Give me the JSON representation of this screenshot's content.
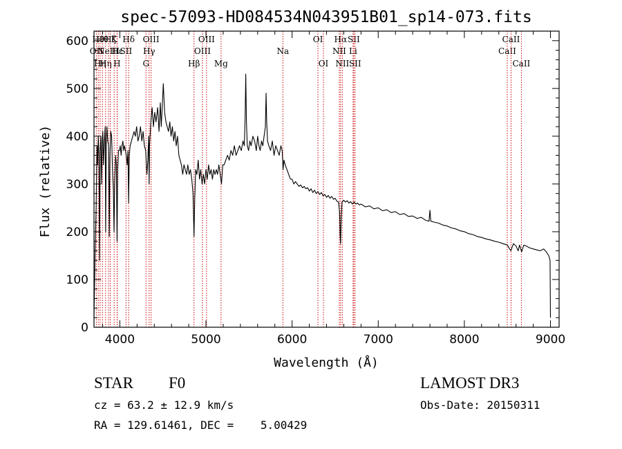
{
  "chart_data": {
    "type": "line",
    "title": "spec-57093-HD084534N043951B01_sp14-073.fits",
    "xlabel": "Wavelength (Å)",
    "ylabel": "Flux (relative)",
    "xlim": [
      3700,
      9100
    ],
    "ylim": [
      0,
      620
    ],
    "xticks": [
      4000,
      5000,
      6000,
      7000,
      8000,
      9000
    ],
    "yticks": [
      0,
      100,
      200,
      300,
      400,
      500,
      600
    ],
    "line_color": "#000000",
    "marker_color": "#cc0000",
    "series": [
      {
        "name": "flux",
        "points": [
          [
            3700,
            20
          ],
          [
            3712,
            150
          ],
          [
            3725,
            250
          ],
          [
            3735,
            380
          ],
          [
            3742,
            340
          ],
          [
            3750,
            400
          ],
          [
            3758,
            360
          ],
          [
            3765,
            140
          ],
          [
            3772,
            370
          ],
          [
            3780,
            400
          ],
          [
            3788,
            300
          ],
          [
            3796,
            390
          ],
          [
            3803,
            410
          ],
          [
            3810,
            340
          ],
          [
            3820,
            390
          ],
          [
            3830,
            420
          ],
          [
            3836,
            200
          ],
          [
            3842,
            380
          ],
          [
            3850,
            420
          ],
          [
            3860,
            390
          ],
          [
            3870,
            380
          ],
          [
            3877,
            190
          ],
          [
            3885,
            360
          ],
          [
            3895,
            410
          ],
          [
            3905,
            400
          ],
          [
            3915,
            330
          ],
          [
            3925,
            290
          ],
          [
            3933,
            200
          ],
          [
            3940,
            300
          ],
          [
            3950,
            360
          ],
          [
            3960,
            340
          ],
          [
            3968,
            180
          ],
          [
            3975,
            330
          ],
          [
            3985,
            370
          ],
          [
            3995,
            370
          ],
          [
            4005,
            380
          ],
          [
            4015,
            360
          ],
          [
            4025,
            380
          ],
          [
            4035,
            390
          ],
          [
            4045,
            370
          ],
          [
            4055,
            380
          ],
          [
            4065,
            370
          ],
          [
            4075,
            360
          ],
          [
            4085,
            340
          ],
          [
            4095,
            370
          ],
          [
            4102,
            260
          ],
          [
            4110,
            360
          ],
          [
            4120,
            380
          ],
          [
            4135,
            390
          ],
          [
            4150,
            400
          ],
          [
            4165,
            410
          ],
          [
            4180,
            400
          ],
          [
            4195,
            420
          ],
          [
            4210,
            390
          ],
          [
            4225,
            400
          ],
          [
            4240,
            420
          ],
          [
            4255,
            390
          ],
          [
            4270,
            410
          ],
          [
            4285,
            380
          ],
          [
            4300,
            370
          ],
          [
            4315,
            320
          ],
          [
            4325,
            350
          ],
          [
            4335,
            400
          ],
          [
            4340,
            300
          ],
          [
            4345,
            380
          ],
          [
            4360,
            430
          ],
          [
            4375,
            460
          ],
          [
            4390,
            420
          ],
          [
            4405,
            450
          ],
          [
            4420,
            430
          ],
          [
            4440,
            460
          ],
          [
            4455,
            410
          ],
          [
            4470,
            470
          ],
          [
            4481,
            420
          ],
          [
            4492,
            460
          ],
          [
            4505,
            510
          ],
          [
            4520,
            450
          ],
          [
            4535,
            430
          ],
          [
            4550,
            420
          ],
          [
            4565,
            410
          ],
          [
            4580,
            430
          ],
          [
            4595,
            400
          ],
          [
            4610,
            420
          ],
          [
            4625,
            390
          ],
          [
            4640,
            410
          ],
          [
            4655,
            380
          ],
          [
            4670,
            400
          ],
          [
            4685,
            360
          ],
          [
            4700,
            350
          ],
          [
            4715,
            340
          ],
          [
            4730,
            320
          ],
          [
            4745,
            340
          ],
          [
            4760,
            330
          ],
          [
            4775,
            320
          ],
          [
            4790,
            340
          ],
          [
            4805,
            320
          ],
          [
            4820,
            330
          ],
          [
            4835,
            310
          ],
          [
            4850,
            280
          ],
          [
            4861,
            190
          ],
          [
            4870,
            270
          ],
          [
            4880,
            330
          ],
          [
            4895,
            320
          ],
          [
            4910,
            350
          ],
          [
            4925,
            310
          ],
          [
            4940,
            330
          ],
          [
            4955,
            300
          ],
          [
            4970,
            320
          ],
          [
            4985,
            300
          ],
          [
            5000,
            330
          ],
          [
            5015,
            310
          ],
          [
            5030,
            340
          ],
          [
            5045,
            320
          ],
          [
            5060,
            330
          ],
          [
            5075,
            310
          ],
          [
            5090,
            330
          ],
          [
            5105,
            320
          ],
          [
            5120,
            330
          ],
          [
            5135,
            320
          ],
          [
            5150,
            340
          ],
          [
            5165,
            320
          ],
          [
            5180,
            300
          ],
          [
            5195,
            340
          ],
          [
            5210,
            340
          ],
          [
            5230,
            350
          ],
          [
            5250,
            360
          ],
          [
            5270,
            350
          ],
          [
            5290,
            370
          ],
          [
            5310,
            360
          ],
          [
            5330,
            380
          ],
          [
            5350,
            360
          ],
          [
            5370,
            370
          ],
          [
            5390,
            380
          ],
          [
            5410,
            370
          ],
          [
            5430,
            390
          ],
          [
            5445,
            380
          ],
          [
            5455,
            440
          ],
          [
            5462,
            530
          ],
          [
            5470,
            430
          ],
          [
            5480,
            380
          ],
          [
            5495,
            370
          ],
          [
            5510,
            390
          ],
          [
            5525,
            380
          ],
          [
            5545,
            400
          ],
          [
            5565,
            390
          ],
          [
            5585,
            370
          ],
          [
            5600,
            400
          ],
          [
            5615,
            380
          ],
          [
            5630,
            370
          ],
          [
            5645,
            390
          ],
          [
            5660,
            380
          ],
          [
            5675,
            400
          ],
          [
            5690,
            420
          ],
          [
            5698,
            490
          ],
          [
            5705,
            430
          ],
          [
            5715,
            390
          ],
          [
            5730,
            380
          ],
          [
            5750,
            370
          ],
          [
            5770,
            390
          ],
          [
            5790,
            360
          ],
          [
            5810,
            380
          ],
          [
            5830,
            370
          ],
          [
            5850,
            360
          ],
          [
            5870,
            380
          ],
          [
            5885,
            370
          ],
          [
            5895,
            330
          ],
          [
            5905,
            350
          ],
          [
            5920,
            340
          ],
          [
            5940,
            330
          ],
          [
            5960,
            320
          ],
          [
            5980,
            310
          ],
          [
            6000,
            310
          ],
          [
            6020,
            300
          ],
          [
            6040,
            305
          ],
          [
            6060,
            300
          ],
          [
            6080,
            295
          ],
          [
            6100,
            298
          ],
          [
            6120,
            292
          ],
          [
            6140,
            295
          ],
          [
            6160,
            290
          ],
          [
            6180,
            292
          ],
          [
            6200,
            285
          ],
          [
            6220,
            290
          ],
          [
            6240,
            282
          ],
          [
            6260,
            287
          ],
          [
            6280,
            280
          ],
          [
            6300,
            284
          ],
          [
            6320,
            278
          ],
          [
            6340,
            282
          ],
          [
            6360,
            275
          ],
          [
            6380,
            278
          ],
          [
            6400,
            272
          ],
          [
            6420,
            276
          ],
          [
            6440,
            270
          ],
          [
            6460,
            274
          ],
          [
            6480,
            268
          ],
          [
            6500,
            270
          ],
          [
            6520,
            264
          ],
          [
            6540,
            262
          ],
          [
            6552,
            240
          ],
          [
            6558,
            190
          ],
          [
            6563,
            175
          ],
          [
            6570,
            230
          ],
          [
            6580,
            262
          ],
          [
            6600,
            266
          ],
          [
            6620,
            262
          ],
          [
            6640,
            265
          ],
          [
            6660,
            260
          ],
          [
            6680,
            263
          ],
          [
            6700,
            258
          ],
          [
            6720,
            262
          ],
          [
            6740,
            258
          ],
          [
            6760,
            260
          ],
          [
            6780,
            256
          ],
          [
            6800,
            258
          ],
          [
            6850,
            252
          ],
          [
            6900,
            254
          ],
          [
            6950,
            248
          ],
          [
            7000,
            250
          ],
          [
            7050,
            244
          ],
          [
            7100,
            246
          ],
          [
            7150,
            240
          ],
          [
            7200,
            242
          ],
          [
            7250,
            236
          ],
          [
            7300,
            238
          ],
          [
            7350,
            232
          ],
          [
            7400,
            233
          ],
          [
            7450,
            228
          ],
          [
            7500,
            230
          ],
          [
            7550,
            224
          ],
          [
            7590,
            222
          ],
          [
            7600,
            245
          ],
          [
            7610,
            222
          ],
          [
            7650,
            220
          ],
          [
            7700,
            218
          ],
          [
            7750,
            214
          ],
          [
            7800,
            212
          ],
          [
            7850,
            208
          ],
          [
            7900,
            206
          ],
          [
            7950,
            202
          ],
          [
            8000,
            200
          ],
          [
            8050,
            196
          ],
          [
            8100,
            194
          ],
          [
            8150,
            190
          ],
          [
            8200,
            188
          ],
          [
            8250,
            185
          ],
          [
            8300,
            183
          ],
          [
            8350,
            180
          ],
          [
            8400,
            178
          ],
          [
            8450,
            175
          ],
          [
            8500,
            172
          ],
          [
            8540,
            160
          ],
          [
            8570,
            175
          ],
          [
            8600,
            170
          ],
          [
            8625,
            160
          ],
          [
            8640,
            172
          ],
          [
            8665,
            158
          ],
          [
            8690,
            172
          ],
          [
            8720,
            170
          ],
          [
            8760,
            166
          ],
          [
            8800,
            164
          ],
          [
            8840,
            162
          ],
          [
            8880,
            160
          ],
          [
            8920,
            164
          ],
          [
            8950,
            158
          ],
          [
            8980,
            150
          ],
          [
            8995,
            140
          ],
          [
            9000,
            20
          ]
        ]
      }
    ],
    "lines": [
      {
        "wavelength": 3727,
        "label": "OII",
        "row": 1
      },
      {
        "wavelength": 3750,
        "label": "Hθ",
        "row": 0
      },
      {
        "wavelength": 3771,
        "label": "Hη",
        "row": 2
      },
      {
        "wavelength": 3798,
        "label": "Hθ",
        "row": 0
      },
      {
        "wavelength": 3835,
        "label": "Hη",
        "row": 2
      },
      {
        "wavelength": 3869,
        "label": "NeIII",
        "row": 1
      },
      {
        "wavelength": 3889,
        "label": "Hζ",
        "row": 0
      },
      {
        "wavelength": 3934,
        "label": "K",
        "row": 0
      },
      {
        "wavelength": 3968,
        "label": "H",
        "row": 2
      },
      {
        "wavelength": 3970,
        "label": "Hε",
        "row": 1
      },
      {
        "wavelength": 4072,
        "label": "SII",
        "row": 1
      },
      {
        "wavelength": 4102,
        "label": "Hδ",
        "row": 0
      },
      {
        "wavelength": 4304,
        "label": "G",
        "row": 2
      },
      {
        "wavelength": 4340,
        "label": "Hγ",
        "row": 1
      },
      {
        "wavelength": 4363,
        "label": "OIII",
        "row": 0
      },
      {
        "wavelength": 4861,
        "label": "Hβ",
        "row": 2
      },
      {
        "wavelength": 4959,
        "label": "OIII",
        "row": 1
      },
      {
        "wavelength": 5007,
        "label": "OIII",
        "row": 0
      },
      {
        "wavelength": 5175,
        "label": "Mg",
        "row": 2
      },
      {
        "wavelength": 5893,
        "label": "Na",
        "row": 1
      },
      {
        "wavelength": 6300,
        "label": "OI",
        "row": 0
      },
      {
        "wavelength": 6364,
        "label": "OI",
        "row": 2
      },
      {
        "wavelength": 6548,
        "label": "NII",
        "row": 1
      },
      {
        "wavelength": 6563,
        "label": "Hα",
        "row": 0
      },
      {
        "wavelength": 6583,
        "label": "NII",
        "row": 2
      },
      {
        "wavelength": 6708,
        "label": "Li",
        "row": 1
      },
      {
        "wavelength": 6716,
        "label": "SII",
        "row": 0
      },
      {
        "wavelength": 6731,
        "label": "SII",
        "row": 2
      },
      {
        "wavelength": 8498,
        "label": "CaII",
        "row": 1
      },
      {
        "wavelength": 8542,
        "label": "CaII",
        "row": 0
      },
      {
        "wavelength": 8662,
        "label": "CaII",
        "row": 2
      }
    ]
  },
  "info": {
    "class": "STAR",
    "subclass": "F0",
    "survey": "LAMOST DR3",
    "cz": "cz = 63.2 ± 12.9 km/s",
    "obs_date": "Obs-Date: 20150311",
    "coords": "RA = 129.61461, DEC =    5.00429"
  }
}
